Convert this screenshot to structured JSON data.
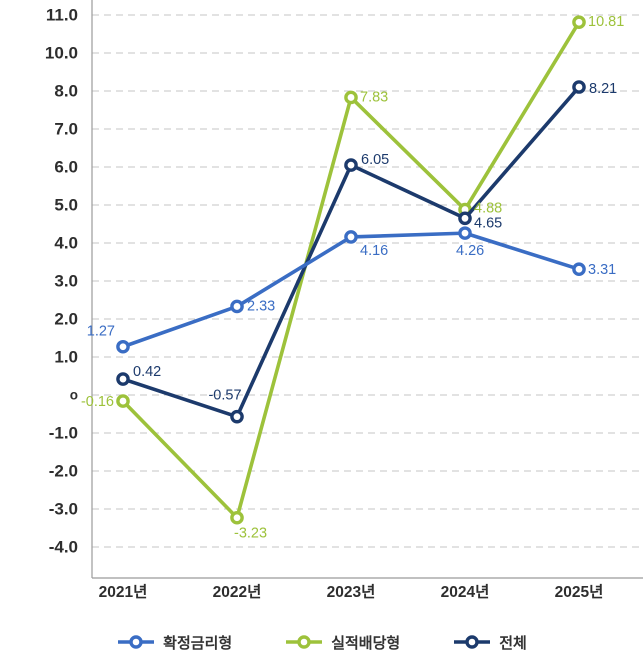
{
  "chart_data": {
    "type": "line",
    "title": "",
    "xlabel": "",
    "ylabel": "",
    "categories": [
      "2021년",
      "2022년",
      "2023년",
      "2024년",
      "2025년"
    ],
    "series": [
      {
        "name": "확정금리형",
        "color": "#3A6DC4",
        "values": [
          1.27,
          2.33,
          4.16,
          4.26,
          3.31
        ]
      },
      {
        "name": "실적배당형",
        "color": "#9DC23B",
        "values": [
          -0.16,
          -3.23,
          7.83,
          4.88,
          10.81
        ]
      },
      {
        "name": "전체",
        "color": "#1C3A6C",
        "values": [
          0.42,
          -0.57,
          6.05,
          4.65,
          8.21
        ]
      }
    ],
    "data_labels_shown": true,
    "y_axis": {
      "tick_labels": [
        "11.0",
        "10.0",
        "8.0",
        "7.0",
        "6.0",
        "5.0",
        "4.0",
        "3.0",
        "2.0",
        "1.0",
        "o",
        "-1.0",
        "-2.0",
        "-3.0",
        "-4.0"
      ],
      "tick_values": [
        11,
        10,
        8,
        7,
        6,
        5,
        4,
        3,
        2,
        1,
        0,
        -1,
        -2,
        -3,
        -4
      ],
      "note": "ticks evenly spaced as rendered; 9.0 level is skipped; zero rendered as small 'o'"
    },
    "grid": "horizontal-dashed",
    "legend_position": "bottom",
    "colors": {
      "gridline": "#C6C6C6",
      "axis_line": "#9B9B9B",
      "tick_text": "#2E2E2E",
      "legend_text": "#333333"
    }
  }
}
